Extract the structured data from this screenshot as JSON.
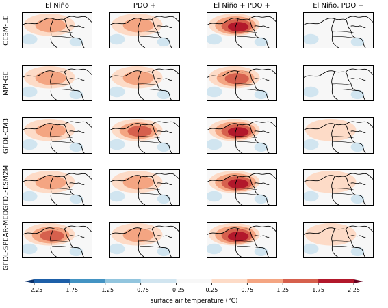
{
  "figure": {
    "columns": [
      "El Niño",
      "PDO +",
      "El Niño + PDO +",
      "El Niño, PDO +"
    ],
    "rows": [
      "CESM-LE",
      "MPI-GE",
      "GFDL-CM3",
      "GFDL-ESM2M",
      "GFDL-SPEAR-MED"
    ],
    "colorbar_label": "surface air temperature (°C)"
  },
  "chart_data": {
    "type": "heatmap",
    "title": "",
    "colorbar": {
      "label": "surface air temperature (°C)",
      "ticks": [
        "−2.25",
        "−1.75",
        "−1.25",
        "−0.75",
        "−0.25",
        "0.25",
        "0.75",
        "1.25",
        "1.75",
        "2.25"
      ],
      "tick_values": [
        -2.25,
        -1.75,
        -1.25,
        -0.75,
        -0.25,
        0.25,
        0.75,
        1.25,
        1.75,
        2.25
      ],
      "colors": [
        "#08306b",
        "#1d5fa8",
        "#4393c3",
        "#92c5de",
        "#d1e5f0",
        "#f7f7f7",
        "#fddbc7",
        "#f4a582",
        "#d6604d",
        "#b2182b",
        "#67001f"
      ],
      "extend": "both"
    },
    "panel_peak_anomalies": [
      [
        1.25,
        1.0,
        2.0,
        0.25
      ],
      [
        1.25,
        1.0,
        1.75,
        0.25
      ],
      [
        1.0,
        1.5,
        2.25,
        0.5
      ],
      [
        1.25,
        1.25,
        2.25,
        0.5
      ],
      [
        1.75,
        1.25,
        2.25,
        0.5
      ]
    ]
  }
}
